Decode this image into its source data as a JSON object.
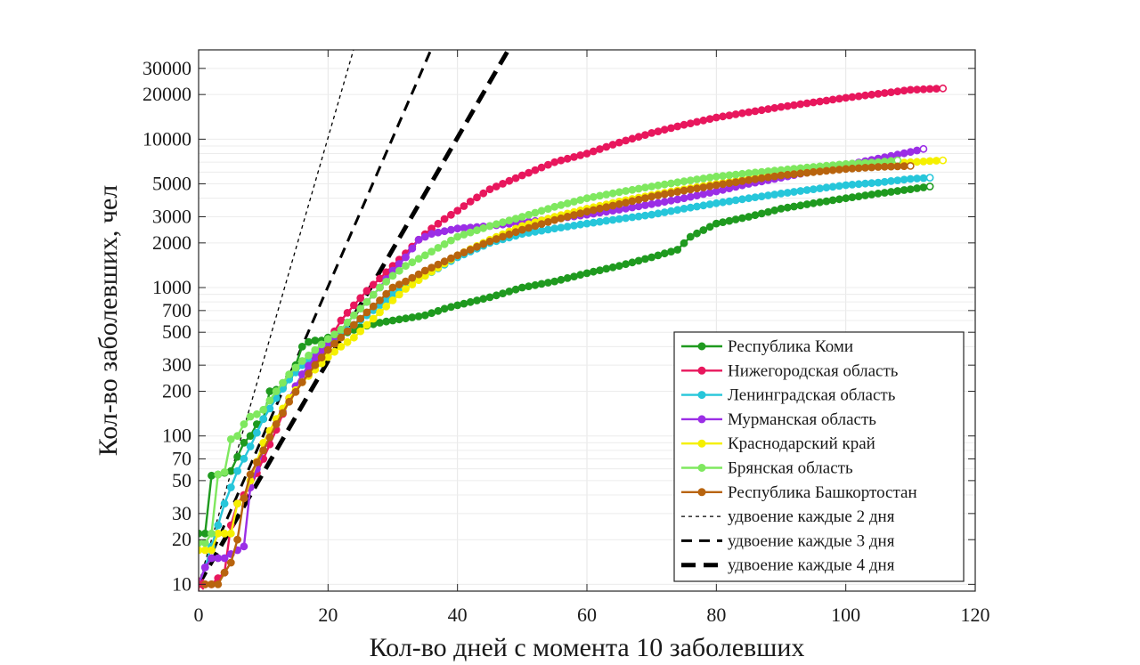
{
  "chart_data": {
    "type": "line",
    "xlabel": "Кол-во дней с момента 10 заболевших",
    "ylabel": "Кол-во заболевших, чел",
    "xlim": [
      0,
      120
    ],
    "ylim": [
      9,
      40000
    ],
    "yscale": "log",
    "grid": true,
    "legend_position": "bottom-right",
    "x_ticks": [
      0,
      20,
      40,
      60,
      80,
      100,
      120
    ],
    "x_tick_labels": [
      "0",
      "20",
      "40",
      "60",
      "80",
      "100",
      "120"
    ],
    "y_ticks": [
      10,
      20,
      30,
      50,
      70,
      100,
      200,
      300,
      500,
      700,
      1000,
      2000,
      3000,
      5000,
      10000,
      20000,
      30000
    ],
    "y_tick_labels": [
      "10",
      "20",
      "30",
      "50",
      "70",
      "100",
      "200",
      "300",
      "500",
      "700",
      "1000",
      "2000",
      "3000",
      "5000",
      "10000",
      "20000",
      "30000"
    ],
    "series": [
      {
        "name": "Республика Коми",
        "color": "#1f9a1f",
        "end_day": 113,
        "anchors": [
          [
            0,
            22
          ],
          [
            1,
            22
          ],
          [
            2,
            54
          ],
          [
            3,
            55
          ],
          [
            5,
            58
          ],
          [
            7,
            90
          ],
          [
            8,
            100
          ],
          [
            9,
            120
          ],
          [
            10,
            130
          ],
          [
            11,
            200
          ],
          [
            13,
            210
          ],
          [
            15,
            300
          ],
          [
            16,
            400
          ],
          [
            17,
            430
          ],
          [
            18,
            440
          ],
          [
            19,
            440
          ],
          [
            20,
            460
          ],
          [
            22,
            480
          ],
          [
            25,
            540
          ],
          [
            28,
            580
          ],
          [
            30,
            600
          ],
          [
            35,
            650
          ],
          [
            38,
            720
          ],
          [
            40,
            760
          ],
          [
            45,
            860
          ],
          [
            50,
            1000
          ],
          [
            55,
            1100
          ],
          [
            60,
            1250
          ],
          [
            65,
            1400
          ],
          [
            70,
            1600
          ],
          [
            74,
            1800
          ],
          [
            76,
            2200
          ],
          [
            80,
            2700
          ],
          [
            85,
            3000
          ],
          [
            90,
            3400
          ],
          [
            95,
            3700
          ],
          [
            100,
            4000
          ],
          [
            105,
            4300
          ],
          [
            110,
            4600
          ],
          [
            113,
            4800
          ]
        ]
      },
      {
        "name": "Нижегородская область",
        "color": "#e8175d",
        "end_day": 115,
        "anchors": [
          [
            0,
            10
          ],
          [
            2,
            10
          ],
          [
            3,
            11
          ],
          [
            4,
            12
          ],
          [
            5,
            25
          ],
          [
            6,
            35
          ],
          [
            7,
            40
          ],
          [
            8,
            45
          ],
          [
            10,
            70
          ],
          [
            12,
            110
          ],
          [
            14,
            180
          ],
          [
            16,
            260
          ],
          [
            18,
            330
          ],
          [
            20,
            430
          ],
          [
            22,
            600
          ],
          [
            24,
            760
          ],
          [
            26,
            950
          ],
          [
            28,
            1150
          ],
          [
            30,
            1400
          ],
          [
            32,
            1700
          ],
          [
            34,
            2100
          ],
          [
            36,
            2500
          ],
          [
            38,
            2900
          ],
          [
            40,
            3300
          ],
          [
            42,
            3800
          ],
          [
            45,
            4600
          ],
          [
            50,
            5700
          ],
          [
            55,
            7000
          ],
          [
            60,
            8000
          ],
          [
            65,
            9500
          ],
          [
            70,
            11000
          ],
          [
            75,
            12500
          ],
          [
            80,
            14000
          ],
          [
            90,
            16500
          ],
          [
            100,
            19000
          ],
          [
            110,
            21500
          ],
          [
            115,
            22000
          ]
        ]
      },
      {
        "name": "Ленинградская область",
        "color": "#26c6da",
        "end_day": 113,
        "anchors": [
          [
            0,
            10
          ],
          [
            1,
            13
          ],
          [
            2,
            18
          ],
          [
            3,
            25
          ],
          [
            4,
            35
          ],
          [
            5,
            45
          ],
          [
            6,
            58
          ],
          [
            8,
            85
          ],
          [
            10,
            130
          ],
          [
            12,
            180
          ],
          [
            14,
            240
          ],
          [
            16,
            300
          ],
          [
            18,
            360
          ],
          [
            20,
            420
          ],
          [
            22,
            480
          ],
          [
            24,
            560
          ],
          [
            26,
            650
          ],
          [
            28,
            760
          ],
          [
            30,
            900
          ],
          [
            32,
            1000
          ],
          [
            35,
            1200
          ],
          [
            40,
            1600
          ],
          [
            45,
            2000
          ],
          [
            50,
            2300
          ],
          [
            55,
            2500
          ],
          [
            60,
            2700
          ],
          [
            65,
            2900
          ],
          [
            70,
            3100
          ],
          [
            75,
            3400
          ],
          [
            80,
            3700
          ],
          [
            85,
            4000
          ],
          [
            90,
            4300
          ],
          [
            95,
            4600
          ],
          [
            100,
            4900
          ],
          [
            105,
            5100
          ],
          [
            110,
            5400
          ],
          [
            113,
            5500
          ]
        ]
      },
      {
        "name": "Мурманская область",
        "color": "#9b2ee6",
        "end_day": 112,
        "anchors": [
          [
            0,
            10
          ],
          [
            1,
            13
          ],
          [
            2,
            15
          ],
          [
            4,
            15
          ],
          [
            5,
            16
          ],
          [
            6,
            17
          ],
          [
            7,
            18
          ],
          [
            8,
            45
          ],
          [
            9,
            60
          ],
          [
            10,
            80
          ],
          [
            12,
            120
          ],
          [
            14,
            180
          ],
          [
            16,
            260
          ],
          [
            18,
            340
          ],
          [
            20,
            420
          ],
          [
            22,
            520
          ],
          [
            24,
            650
          ],
          [
            26,
            800
          ],
          [
            28,
            1000
          ],
          [
            30,
            1300
          ],
          [
            32,
            1600
          ],
          [
            34,
            2100
          ],
          [
            36,
            2300
          ],
          [
            38,
            2400
          ],
          [
            40,
            2500
          ],
          [
            45,
            2600
          ],
          [
            50,
            2750
          ],
          [
            55,
            2900
          ],
          [
            60,
            3100
          ],
          [
            65,
            3350
          ],
          [
            70,
            3650
          ],
          [
            75,
            4000
          ],
          [
            80,
            4450
          ],
          [
            85,
            5000
          ],
          [
            90,
            5500
          ],
          [
            95,
            6100
          ],
          [
            100,
            6700
          ],
          [
            105,
            7400
          ],
          [
            110,
            8200
          ],
          [
            112,
            8600
          ]
        ]
      },
      {
        "name": "Краснодарский край",
        "color": "#f5f000",
        "end_day": 115,
        "anchors": [
          [
            0,
            17
          ],
          [
            1,
            17
          ],
          [
            2,
            17
          ],
          [
            3,
            22
          ],
          [
            4,
            22
          ],
          [
            5,
            22
          ],
          [
            6,
            35
          ],
          [
            7,
            38
          ],
          [
            8,
            50
          ],
          [
            10,
            90
          ],
          [
            12,
            130
          ],
          [
            14,
            180
          ],
          [
            16,
            230
          ],
          [
            18,
            280
          ],
          [
            20,
            340
          ],
          [
            22,
            400
          ],
          [
            24,
            460
          ],
          [
            26,
            560
          ],
          [
            28,
            680
          ],
          [
            30,
            820
          ],
          [
            32,
            980
          ],
          [
            35,
            1200
          ],
          [
            40,
            1650
          ],
          [
            45,
            2100
          ],
          [
            50,
            2600
          ],
          [
            55,
            3000
          ],
          [
            60,
            3400
          ],
          [
            65,
            3800
          ],
          [
            70,
            4200
          ],
          [
            75,
            4600
          ],
          [
            80,
            5000
          ],
          [
            85,
            5400
          ],
          [
            90,
            5800
          ],
          [
            95,
            6100
          ],
          [
            100,
            6500
          ],
          [
            105,
            6800
          ],
          [
            110,
            7000
          ],
          [
            115,
            7200
          ]
        ]
      },
      {
        "name": "Брянская область",
        "color": "#7fe85f",
        "end_day": 108,
        "anchors": [
          [
            0,
            19
          ],
          [
            1,
            19
          ],
          [
            2,
            22
          ],
          [
            3,
            55
          ],
          [
            4,
            57
          ],
          [
            5,
            95
          ],
          [
            6,
            100
          ],
          [
            7,
            120
          ],
          [
            8,
            135
          ],
          [
            9,
            140
          ],
          [
            10,
            150
          ],
          [
            12,
            200
          ],
          [
            14,
            260
          ],
          [
            16,
            320
          ],
          [
            18,
            380
          ],
          [
            20,
            450
          ],
          [
            22,
            520
          ],
          [
            24,
            650
          ],
          [
            26,
            800
          ],
          [
            28,
            1000
          ],
          [
            30,
            1200
          ],
          [
            32,
            1400
          ],
          [
            35,
            1650
          ],
          [
            40,
            2200
          ],
          [
            45,
            2600
          ],
          [
            50,
            3000
          ],
          [
            55,
            3500
          ],
          [
            60,
            4000
          ],
          [
            65,
            4400
          ],
          [
            70,
            4800
          ],
          [
            75,
            5200
          ],
          [
            80,
            5600
          ],
          [
            85,
            5900
          ],
          [
            90,
            6200
          ],
          [
            95,
            6500
          ],
          [
            100,
            6800
          ],
          [
            105,
            7000
          ],
          [
            108,
            7200
          ]
        ]
      },
      {
        "name": "Республика Башкортостан",
        "color": "#b8640e",
        "end_day": 110,
        "anchors": [
          [
            0,
            10
          ],
          [
            1,
            10
          ],
          [
            2,
            10
          ],
          [
            3,
            10
          ],
          [
            4,
            12
          ],
          [
            5,
            14
          ],
          [
            6,
            20
          ],
          [
            7,
            38
          ],
          [
            8,
            55
          ],
          [
            10,
            80
          ],
          [
            12,
            120
          ],
          [
            14,
            170
          ],
          [
            16,
            230
          ],
          [
            18,
            300
          ],
          [
            20,
            380
          ],
          [
            22,
            460
          ],
          [
            24,
            560
          ],
          [
            26,
            680
          ],
          [
            28,
            820
          ],
          [
            30,
            1000
          ],
          [
            32,
            1100
          ],
          [
            35,
            1300
          ],
          [
            40,
            1650
          ],
          [
            45,
            2050
          ],
          [
            50,
            2450
          ],
          [
            55,
            2850
          ],
          [
            60,
            3250
          ],
          [
            65,
            3650
          ],
          [
            70,
            4100
          ],
          [
            75,
            4500
          ],
          [
            80,
            4900
          ],
          [
            85,
            5300
          ],
          [
            90,
            5700
          ],
          [
            95,
            6000
          ],
          [
            100,
            6300
          ],
          [
            105,
            6500
          ],
          [
            110,
            6600
          ]
        ]
      },
      {
        "name": "удвоение каждые 2 дня",
        "color": "#000000",
        "style": "thin-dash",
        "doubling_days": 2
      },
      {
        "name": "удвоение каждые 3 дня",
        "color": "#000000",
        "style": "dash",
        "doubling_days": 3
      },
      {
        "name": "удвоение каждые 4 дня",
        "color": "#000000",
        "style": "thick-dash",
        "doubling_days": 4
      }
    ]
  }
}
